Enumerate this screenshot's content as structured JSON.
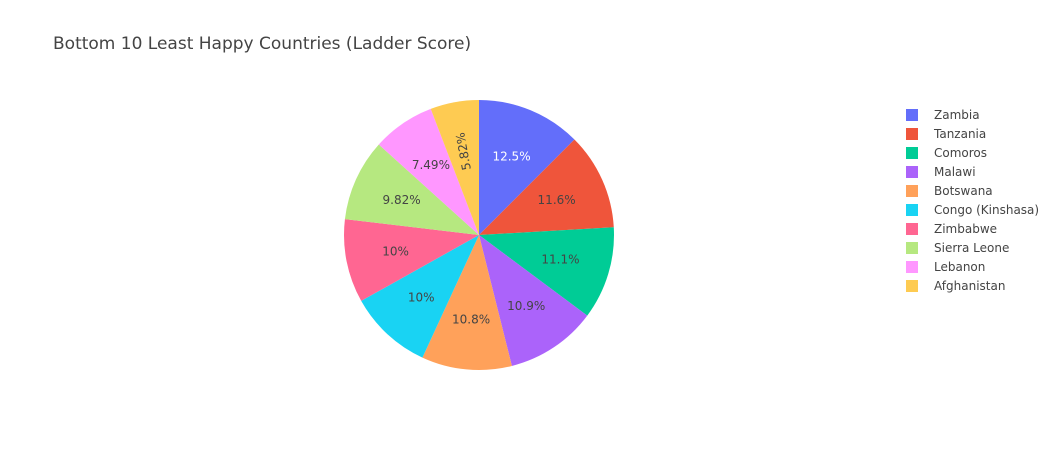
{
  "chart_data": {
    "type": "pie",
    "title": "Bottom 10 Least Happy Countries (Ladder Score)",
    "categories": [
      "Zambia",
      "Tanzania",
      "Comoros",
      "Malawi",
      "Botswana",
      "Congo (Kinshasa)",
      "Zimbabwe",
      "Sierra Leone",
      "Lebanon",
      "Afghanistan"
    ],
    "values": [
      12.5,
      11.6,
      11.1,
      10.9,
      10.8,
      10.0,
      10.0,
      9.82,
      7.49,
      5.82
    ],
    "labels": [
      "12.5%",
      "11.6%",
      "11.1%",
      "10.9%",
      "10.8%",
      "10%",
      "10%",
      "9.82%",
      "7.49%",
      "5.82%"
    ],
    "colors": [
      "#636efa",
      "#EF553B",
      "#00cc96",
      "#ab63fa",
      "#FFA15A",
      "#19d3f3",
      "#FF6692",
      "#B6E880",
      "#FF97FF",
      "#FECB52"
    ],
    "label_colors": [
      "#ffffff",
      "#444444",
      "#444444",
      "#444444",
      "#444444",
      "#444444",
      "#444444",
      "#444444",
      "#444444",
      "#444444"
    ],
    "legend_position": "right",
    "direction": "clockwise"
  }
}
